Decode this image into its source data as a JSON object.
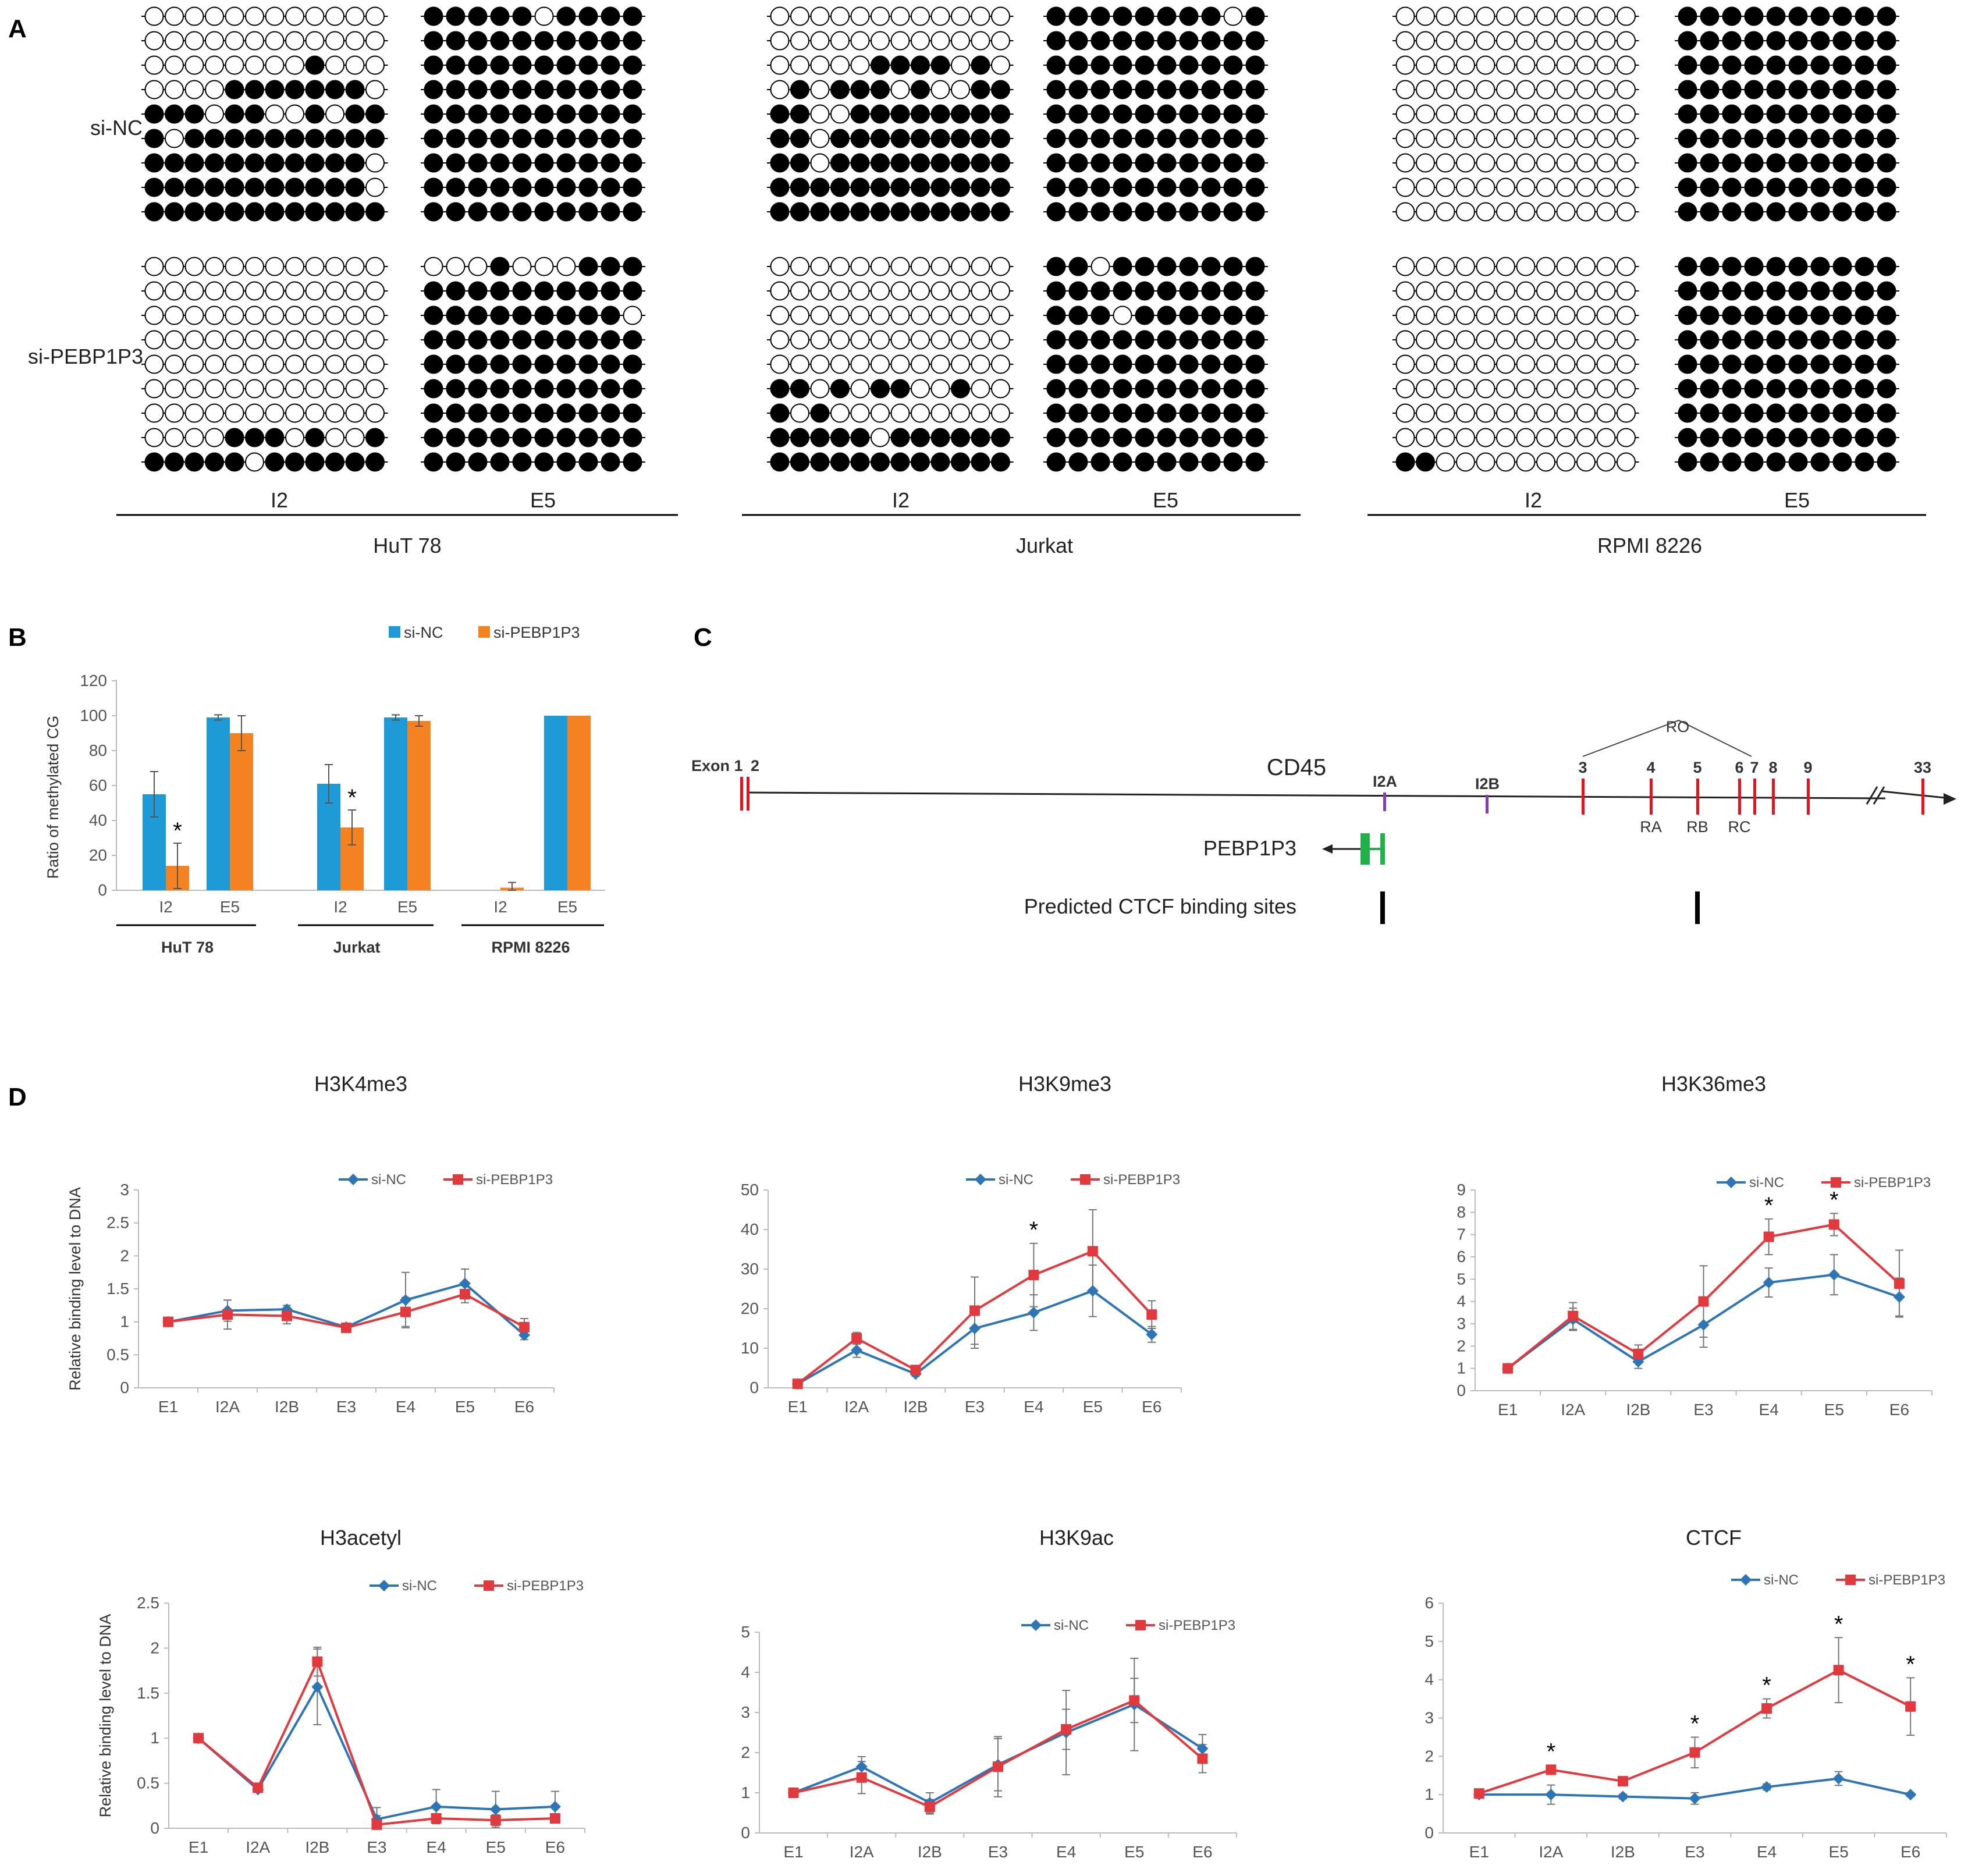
{
  "panels": {
    "a": "A",
    "b": "B",
    "c": "C",
    "d": "D"
  },
  "colors": {
    "si_nc_bar": "#1e9bd7",
    "si_pebp_bar": "#f58220",
    "si_nc_line": "#2e75b6",
    "si_pebp_line": "#e0393e",
    "exon_red": "#e8111e",
    "intron_purple": "#8a3ab9",
    "pebp_green": "#22b04b"
  },
  "panel_a": {
    "row_labels": [
      "si-NC",
      "si-PEBP1P3"
    ],
    "cell_lines": [
      {
        "name": "HuT 78",
        "regions": [
          "I2",
          "E5"
        ],
        "si_nc": {
          "I2": [
            "000000000000",
            "000000000000",
            "000000001000",
            "000011111110",
            "111011001011",
            "101111111111",
            "111111111110",
            "111111111110",
            "111111111111"
          ],
          "E5": [
            "1111101111",
            "1111111111",
            "1111111111",
            "1111111111",
            "1111111111",
            "1111111111",
            "1111111111",
            "1111111111",
            "1111111111"
          ]
        },
        "si_pebp1p3": {
          "I2": [
            "000000000000",
            "000000000000",
            "000000000000",
            "000000000000",
            "000000000000",
            "000000000000",
            "000000000000",
            "000011101001",
            "111110111111"
          ],
          "E5": [
            "0001000111",
            "1111111111",
            "1111111110",
            "1111111111",
            "1111111111",
            "1111111111",
            "1111111111",
            "1111111111",
            "1111111111"
          ]
        }
      },
      {
        "name": "Jurkat",
        "regions": [
          "I2",
          "E5"
        ],
        "si_nc": {
          "I2": [
            "000000000000",
            "000000000000",
            "000001111010",
            "010111010011",
            "110011111111",
            "110111111111",
            "110111111111",
            "111111111111",
            "111111111111"
          ],
          "E5": [
            "1111111101",
            "1111111111",
            "1111111111",
            "1111111111",
            "1111111111",
            "1111111111",
            "1111111111",
            "1111111111",
            "1111111111"
          ]
        },
        "si_pebp1p3": {
          "I2": [
            "000000000000",
            "000000000000",
            "000000000000",
            "000000000000",
            "000000000000",
            "110101100100",
            "101000000000",
            "111110111111",
            "111111111111"
          ],
          "E5": [
            "1101111111",
            "1111111111",
            "1110111111",
            "1111111111",
            "1111111111",
            "1111111111",
            "1111111111",
            "1111111111",
            "1111111111"
          ]
        }
      },
      {
        "name": "RPMI 8226",
        "regions": [
          "I2",
          "E5"
        ],
        "si_nc": {
          "I2": [
            "000000000000",
            "000000000000",
            "000000000000",
            "000000000000",
            "000000000000",
            "000000000000",
            "000000000000",
            "000000000000",
            "000000000000"
          ],
          "E5": [
            "1111111111",
            "1111111111",
            "1111111111",
            "1111111111",
            "1111111111",
            "1111111111",
            "1111111111",
            "1111111111",
            "1111111111"
          ]
        },
        "si_pebp1p3": {
          "I2": [
            "000000000000",
            "000000000000",
            "000000000000",
            "000000000000",
            "000000000000",
            "000000000000",
            "000000000000",
            "000000000000",
            "110000000000"
          ],
          "E5": [
            "1111111111",
            "1111111111",
            "1111111111",
            "1111111111",
            "1111111111",
            "1111111111",
            "1111111111",
            "1111111111",
            "1111111111"
          ]
        }
      }
    ]
  },
  "panel_c": {
    "gene": "CD45",
    "exon_prefix": "Exon 1",
    "exon_labels": [
      "2",
      "3",
      "4",
      "5",
      "6",
      "7",
      "8",
      "9",
      "33"
    ],
    "intron_labels": [
      "I2A",
      "I2B"
    ],
    "isoform_labels": [
      "RA",
      "RB",
      "RC"
    ],
    "ro_label": "RO",
    "pebp_label": "PEBP1P3",
    "ctcf_label": "Predicted CTCF binding sites"
  },
  "chart_data": [
    {
      "id": "B",
      "type": "bar",
      "title": "",
      "ylabel": "Ratio of methylated CG",
      "xlabel": "",
      "ylim": [
        0,
        120
      ],
      "yticks": [
        "0",
        "20",
        "40",
        "60",
        "80",
        "100",
        "120"
      ],
      "categories": [
        "I2",
        "E5",
        "I2",
        "E5",
        "I2",
        "E5"
      ],
      "groups": [
        "HuT 78",
        "Jurkat",
        "RPMI 8226"
      ],
      "series": [
        {
          "name": "si-NC",
          "values": [
            55,
            99,
            61,
            99,
            0,
            100
          ],
          "errors": [
            13,
            1.5,
            11,
            1.5,
            0,
            0
          ]
        },
        {
          "name": "si-PEBP1P3",
          "values": [
            14,
            90,
            36,
            97,
            1.5,
            100
          ],
          "errors": [
            13,
            10,
            10,
            3,
            3,
            0
          ]
        }
      ],
      "significance": [
        "*",
        "",
        "*",
        "",
        "",
        ""
      ],
      "legend_position": "top-right"
    },
    {
      "id": "H3K4me3",
      "type": "line",
      "title": "H3K4me3",
      "ylabel": "Relative binding level to DNA",
      "categories": [
        "E1",
        "I2A",
        "I2B",
        "E3",
        "E4",
        "E5",
        "E6"
      ],
      "ylim": [
        0,
        3
      ],
      "yticks": [
        "0",
        "0.5",
        "1",
        "1.5",
        "2",
        "2.5",
        "3"
      ],
      "series": [
        {
          "name": "si-NC",
          "values": [
            1.0,
            1.17,
            1.19,
            0.92,
            1.33,
            1.58,
            0.8
          ],
          "errors": [
            0.03,
            0.16,
            0.06,
            0.04,
            0.42,
            0.22,
            0.07
          ]
        },
        {
          "name": "si-PEBP1P3",
          "values": [
            1.0,
            1.11,
            1.09,
            0.91,
            1.15,
            1.42,
            0.92
          ],
          "errors": [
            0.03,
            0.22,
            0.12,
            0.04,
            0.22,
            0.13,
            0.13
          ]
        }
      ],
      "significance": [
        "",
        "",
        "",
        "",
        "",
        "",
        ""
      ],
      "legend_position": "top-right"
    },
    {
      "id": "H3K9me3",
      "type": "line",
      "title": "H3K9me3",
      "ylabel": "",
      "categories": [
        "E1",
        "I2A",
        "I2B",
        "E3",
        "E4",
        "E5",
        "E6"
      ],
      "ylim": [
        0,
        50
      ],
      "yticks": [
        "0",
        "10",
        "20",
        "30",
        "40",
        "50"
      ],
      "series": [
        {
          "name": "si-NC",
          "values": [
            1.0,
            9.5,
            3.5,
            15,
            19,
            24.5,
            13.5
          ],
          "errors": [
            0.3,
            1.8,
            0.6,
            5,
            4.5,
            6.5,
            2
          ]
        },
        {
          "name": "si-PEBP1P3",
          "values": [
            1.0,
            12.5,
            4.5,
            19.5,
            28.5,
            34.5,
            18.5
          ],
          "errors": [
            0.3,
            1.5,
            0.8,
            8.5,
            8,
            10.5,
            3.5
          ]
        }
      ],
      "significance": [
        "",
        "",
        "",
        "",
        "*",
        "",
        ""
      ],
      "legend_position": "top-right"
    },
    {
      "id": "H3K36me3",
      "type": "line",
      "title": "H3K36me3",
      "ylabel": "",
      "categories": [
        "E1",
        "I2A",
        "I2B",
        "E3",
        "E4",
        "E5",
        "E6"
      ],
      "ylim": [
        0,
        9
      ],
      "yticks": [
        "0",
        "1",
        "2",
        "3",
        "4",
        "5",
        "6",
        "7",
        "8",
        "9"
      ],
      "series": [
        {
          "name": "si-NC",
          "values": [
            1.0,
            3.2,
            1.3,
            2.95,
            4.85,
            5.2,
            4.2
          ],
          "errors": [
            0.05,
            0.5,
            0.3,
            1.0,
            0.65,
            0.9,
            0.85
          ]
        },
        {
          "name": "si-PEBP1P3",
          "values": [
            1.0,
            3.35,
            1.65,
            4.0,
            6.9,
            7.45,
            4.8
          ],
          "errors": [
            0.05,
            0.6,
            0.4,
            1.6,
            0.8,
            0.5,
            1.5
          ]
        }
      ],
      "significance": [
        "",
        "",
        "",
        "",
        "*",
        "*",
        ""
      ],
      "legend_position": "top-right"
    },
    {
      "id": "H3acetyl",
      "type": "line",
      "title": "H3acetyl",
      "ylabel": "Relative binding level to DNA",
      "categories": [
        "E1",
        "I2A",
        "I2B",
        "E3",
        "E4",
        "E5",
        "E6"
      ],
      "ylim": [
        0,
        2.5
      ],
      "yticks": [
        "0",
        "0.5",
        "1",
        "1.5",
        "2",
        "2.5"
      ],
      "series": [
        {
          "name": "si-NC",
          "values": [
            1.0,
            0.43,
            1.57,
            0.1,
            0.24,
            0.21,
            0.24
          ],
          "errors": [
            0.02,
            0.03,
            0.42,
            0.13,
            0.19,
            0.2,
            0.17
          ]
        },
        {
          "name": "si-PEBP1P3",
          "values": [
            1.0,
            0.45,
            1.85,
            0.04,
            0.11,
            0.09,
            0.11
          ],
          "errors": [
            0.02,
            0.03,
            0.16,
            0.1,
            0.05,
            0.06,
            0.05
          ]
        }
      ],
      "significance": [
        "",
        "",
        "",
        "",
        "",
        "",
        ""
      ],
      "legend_position": "top-right"
    },
    {
      "id": "H3K9ac",
      "type": "line",
      "title": "H3K9ac",
      "ylabel": "",
      "categories": [
        "E1",
        "I2A",
        "I2B",
        "E3",
        "E4",
        "E5",
        "E6"
      ],
      "ylim": [
        0,
        5
      ],
      "yticks": [
        "0",
        "1",
        "2",
        "3",
        "4",
        "5"
      ],
      "series": [
        {
          "name": "si-NC",
          "values": [
            1.0,
            1.65,
            0.75,
            1.7,
            2.5,
            3.2,
            2.1
          ],
          "errors": [
            0.03,
            0.25,
            0.25,
            0.65,
            1.05,
            1.15,
            0.35
          ]
        },
        {
          "name": "si-PEBP1P3",
          "values": [
            1.0,
            1.38,
            0.65,
            1.65,
            2.58,
            3.3,
            1.85
          ],
          "errors": [
            0.03,
            0.4,
            0.18,
            0.75,
            0.5,
            0.55,
            0.35
          ]
        }
      ],
      "significance": [
        "",
        "",
        "",
        "",
        "",
        "",
        ""
      ],
      "legend_position": "top-right"
    },
    {
      "id": "CTCF",
      "type": "line",
      "title": "CTCF",
      "ylabel": "",
      "categories": [
        "E1",
        "I2A",
        "I2B",
        "E3",
        "E4",
        "E5",
        "E6"
      ],
      "ylim": [
        0,
        6
      ],
      "yticks": [
        "0",
        "1",
        "2",
        "3",
        "4",
        "5",
        "6"
      ],
      "series": [
        {
          "name": "si-NC",
          "values": [
            1.0,
            1.0,
            0.95,
            0.9,
            1.2,
            1.42,
            1.0
          ],
          "errors": [
            0.05,
            0.25,
            0.06,
            0.15,
            0.08,
            0.18,
            0.05
          ]
        },
        {
          "name": "si-PEBP1P3",
          "values": [
            1.03,
            1.65,
            1.35,
            2.1,
            3.25,
            4.25,
            3.3
          ],
          "errors": [
            0.08,
            0.12,
            0.1,
            0.4,
            0.25,
            0.85,
            0.75
          ]
        }
      ],
      "significance": [
        "",
        "*",
        "",
        "*",
        "*",
        "*",
        "*"
      ],
      "legend_position": "top-right"
    }
  ]
}
